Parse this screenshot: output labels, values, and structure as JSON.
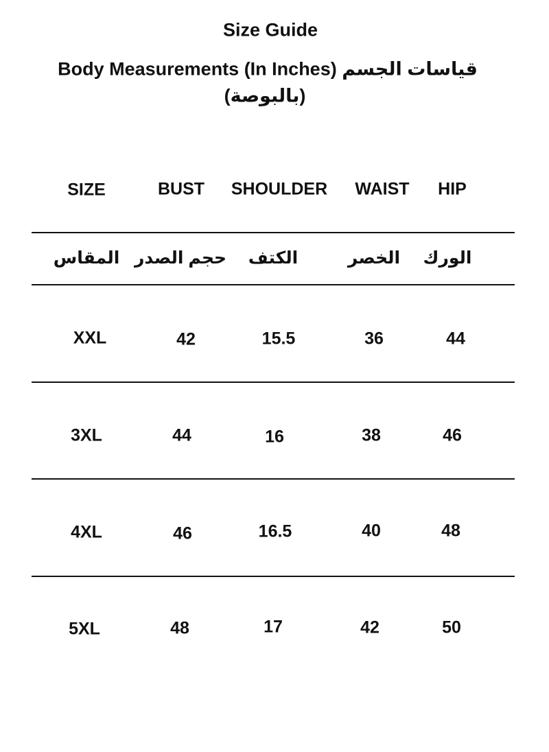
{
  "title": "Size Guide",
  "subtitle_line1": "Body Measurements (In Inches) قياسات الجسم",
  "subtitle_line2": "(بالبوصة)",
  "headers_en": [
    "SIZE",
    "BUST",
    "SHOULDER",
    "WAIST",
    "HIP"
  ],
  "headers_ar": [
    "المقاس",
    "حجم الصدر",
    "الكتف",
    "الخصر",
    "الورك"
  ],
  "rows": [
    [
      "XXL",
      "42",
      "15.5",
      "36",
      "44"
    ],
    [
      "3XL",
      "44",
      "16",
      "38",
      "46"
    ],
    [
      "4XL",
      "46",
      "16.5",
      "40",
      "48"
    ],
    [
      "5XL",
      "48",
      "17",
      "42",
      "50"
    ]
  ]
}
